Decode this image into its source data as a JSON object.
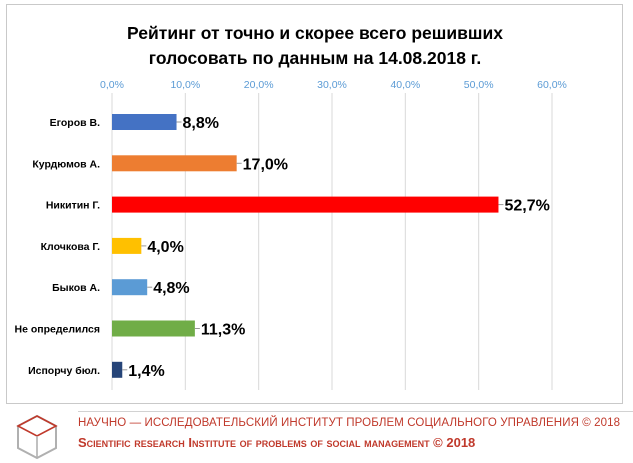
{
  "colors": {
    "footer_text": "#c0392b",
    "grid": "#d9d9d9",
    "axis_text": "#5b9bd5"
  },
  "chart_data": {
    "type": "bar",
    "orientation": "horizontal",
    "title_line1": "Рейтинг от точно и скорее всего решивших",
    "title_line2": "голосовать по данным на 14.08.2018 г.",
    "categories": [
      "Егоров В.",
      "Курдюмов А.",
      "Никитин Г.",
      "Клочкова Г.",
      "Быков А.",
      "Не определился",
      "Испорчу бюл."
    ],
    "values": [
      8.8,
      17.0,
      52.7,
      4.0,
      4.8,
      11.3,
      1.4
    ],
    "value_labels": [
      "8,8%",
      "17,0%",
      "52,7%",
      "4,0%",
      "4,8%",
      "11,3%",
      "1,4%"
    ],
    "bar_colors": [
      "#4472c4",
      "#ed7d31",
      "#ff0000",
      "#ffc000",
      "#5b9bd5",
      "#70ad47",
      "#264478"
    ],
    "xlim": [
      0,
      60
    ],
    "ticks": [
      "0,0%",
      "10,0%",
      "20,0%",
      "30,0%",
      "40,0%",
      "50,0%",
      "60,0%"
    ],
    "tick_values": [
      0,
      10,
      20,
      30,
      40,
      50,
      60
    ],
    "axis_position": "top",
    "grid": true
  },
  "footer": {
    "line1": "НАУЧНО — ИССЛЕДОВАТЕЛЬСКИЙ ИНСТИТУТ ПРОБЛЕМ СОЦИАЛЬНОГО УПРАВЛЕНИЯ © 2018",
    "line2": "Scientific research Institute of problems of social management © 2018"
  }
}
